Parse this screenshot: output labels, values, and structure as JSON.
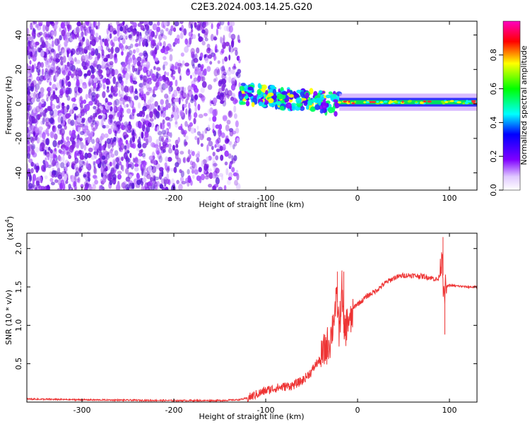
{
  "title": "C2E3.2024.003.14.25.G20",
  "chart_data": [
    {
      "type": "heatmap",
      "xlabel": "Height of straight line (km)",
      "ylabel": "Frequency (Hz)",
      "xlim": [
        -360,
        130
      ],
      "ylim": [
        -50,
        48
      ],
      "xticks": [
        -300,
        -200,
        -100,
        0,
        100
      ],
      "yticks": [
        -40,
        -20,
        0,
        20,
        40
      ],
      "colorbar": {
        "label": "Normalized spectral amplitude",
        "range": [
          0,
          1
        ],
        "ticks": [
          0.0,
          0.2,
          0.4,
          0.6,
          0.8
        ],
        "colormap": [
          "#ff00c0",
          "#ff0000",
          "#ffff00",
          "#00ff00",
          "#00ffff",
          "#0000ff",
          "#8000ff",
          "#ffffff"
        ]
      },
      "regions": [
        {
          "x_range": [
            -360,
            -128
          ],
          "freq_range": [
            -50,
            48
          ],
          "amplitude": 0.08
        },
        {
          "x_range": [
            -128,
            -20
          ],
          "center_freq_range": [
            6,
            0
          ],
          "amplitude": 0.5
        },
        {
          "x_range": [
            -20,
            130
          ],
          "center_freq": 1,
          "bandwidth": 5,
          "amplitude": 0.45
        }
      ]
    },
    {
      "type": "line",
      "xlabel": "Height of straight line (km)",
      "ylabel": "SNR (10 * v/v)",
      "y_multiplier": "(x10",
      "y_multiplier_exp": "4",
      "y_multiplier_close": ")",
      "xlim": [
        -360,
        130
      ],
      "ylim": [
        0,
        2.2
      ],
      "xticks": [
        -300,
        -200,
        -100,
        0,
        100
      ],
      "yticks": [
        0.5,
        1.0,
        1.5,
        2.0
      ],
      "color": "#ee3333",
      "series": [
        {
          "x": [
            -360,
            -300,
            -200,
            -150,
            -130,
            -120,
            -110,
            -100,
            -90,
            -80,
            -70,
            -60,
            -50,
            -45,
            -40,
            -35,
            -30,
            -27,
            -25,
            -22,
            -20,
            -17,
            -15,
            -12,
            -10,
            -8,
            -5,
            -3,
            0,
            5,
            10,
            20,
            30,
            40,
            50,
            60,
            70,
            80,
            85,
            88,
            90,
            92,
            94,
            96,
            100,
            110,
            120,
            130
          ],
          "y": [
            0.04,
            0.03,
            0.02,
            0.02,
            0.03,
            0.05,
            0.1,
            0.15,
            0.18,
            0.2,
            0.22,
            0.28,
            0.4,
            0.5,
            0.55,
            0.7,
            0.8,
            1.0,
            1.2,
            1.3,
            0.9,
            1.5,
            0.9,
            1.0,
            1.1,
            1.0,
            1.2,
            1.25,
            1.28,
            1.32,
            1.38,
            1.45,
            1.55,
            1.62,
            1.65,
            1.65,
            1.64,
            1.62,
            1.6,
            1.6,
            1.7,
            2.0,
            1.3,
            1.5,
            1.52,
            1.51,
            1.5,
            1.5
          ]
        }
      ],
      "peaks": [
        {
          "x": -22,
          "y": 1.7
        },
        {
          "x": -15,
          "y": 1.7
        },
        {
          "x": 93,
          "y": 2.15
        },
        {
          "x": 95,
          "y": 0.88
        }
      ]
    }
  ]
}
